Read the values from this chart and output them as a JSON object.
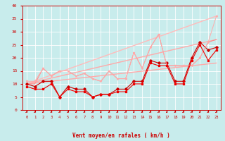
{
  "xlabel": "Vent moyen/en rafales ( km/h )",
  "background_color": "#c8ecec",
  "grid_color": "#aadddd",
  "x_ticks": [
    0,
    1,
    2,
    3,
    4,
    5,
    6,
    7,
    8,
    9,
    10,
    11,
    12,
    13,
    14,
    15,
    16,
    17,
    18,
    19,
    20,
    21,
    22,
    23
  ],
  "ylim": [
    0,
    40
  ],
  "xlim": [
    -0.5,
    23.5
  ],
  "yticks": [
    0,
    5,
    10,
    15,
    20,
    25,
    30,
    35,
    40
  ],
  "series": [
    {
      "x": [
        0,
        1,
        2,
        3,
        4,
        5,
        6,
        7,
        8,
        9,
        10,
        11,
        12,
        13,
        14,
        15,
        16,
        17,
        18,
        19,
        20,
        21,
        22,
        23
      ],
      "y": [
        10,
        9,
        11,
        11,
        5,
        9,
        8,
        8,
        5,
        6,
        6,
        8,
        8,
        11,
        11,
        19,
        18,
        18,
        11,
        11,
        20,
        26,
        23,
        24
      ],
      "color": "#cc0000",
      "lw": 0.8,
      "marker": "D",
      "ms": 1.8
    },
    {
      "x": [
        0,
        23
      ],
      "y": [
        10,
        36
      ],
      "color": "#ffbbbb",
      "lw": 1.0,
      "marker": null,
      "ms": 0
    },
    {
      "x": [
        0,
        23
      ],
      "y": [
        10,
        27
      ],
      "color": "#ffaaaa",
      "lw": 1.0,
      "marker": null,
      "ms": 0
    },
    {
      "x": [
        0,
        23
      ],
      "y": [
        10,
        18
      ],
      "color": "#ffaaaa",
      "lw": 1.0,
      "marker": null,
      "ms": 0
    },
    {
      "x": [
        0,
        1,
        2,
        3,
        4,
        5,
        6,
        7,
        8,
        9,
        10,
        11,
        12,
        13,
        14,
        15,
        16,
        17,
        18,
        19,
        20,
        21,
        22,
        23
      ],
      "y": [
        11,
        11,
        16,
        13,
        15,
        15,
        13,
        14,
        12,
        11,
        15,
        12,
        12,
        22,
        16,
        24,
        29,
        17,
        17,
        17,
        17,
        20,
        26,
        36
      ],
      "color": "#ffaaaa",
      "lw": 0.7,
      "marker": "v",
      "ms": 1.5
    },
    {
      "x": [
        0,
        1,
        2,
        3,
        4,
        5,
        6,
        7,
        8,
        9,
        10,
        11,
        12,
        13,
        14,
        15,
        16,
        17,
        18,
        19,
        20,
        21,
        22,
        23
      ],
      "y": [
        10,
        10,
        16,
        13,
        15,
        15,
        13,
        14,
        12,
        11,
        15,
        12,
        12,
        22,
        16,
        24,
        29,
        17,
        17,
        17,
        17,
        20,
        26,
        27
      ],
      "color": "#ff8888",
      "lw": 0.7,
      "marker": null,
      "ms": 0
    },
    {
      "x": [
        0,
        1,
        2,
        3,
        4,
        5,
        6,
        7,
        8,
        9,
        10,
        11,
        12,
        13,
        14,
        15,
        16,
        17,
        18,
        19,
        20,
        21,
        22,
        23
      ],
      "y": [
        9,
        8,
        8,
        10,
        5,
        8,
        7,
        7,
        5,
        6,
        6,
        7,
        7,
        10,
        10,
        18,
        17,
        17,
        10,
        10,
        19,
        25,
        19,
        23
      ],
      "color": "#ee0000",
      "lw": 0.8,
      "marker": "s",
      "ms": 1.5
    }
  ]
}
